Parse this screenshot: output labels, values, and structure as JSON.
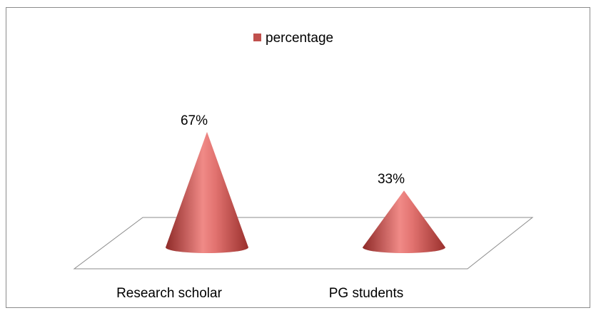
{
  "chart_data": {
    "type": "cone",
    "legend": "percentage",
    "color": "#c0504d",
    "categories": [
      "Research scholar",
      "PG students"
    ],
    "values": [
      67,
      33
    ],
    "value_labels": [
      "67%",
      "33%"
    ]
  }
}
